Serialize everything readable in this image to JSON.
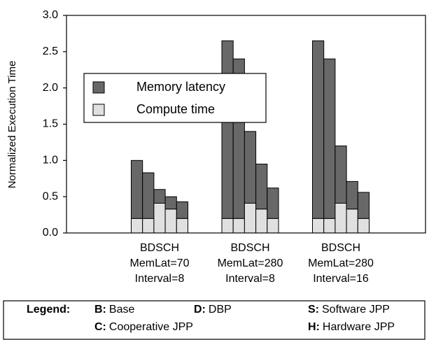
{
  "chart_data": {
    "type": "stacked_bar",
    "y_label": "Normalized Execution Time",
    "categories": [
      [
        "BDSCH",
        "MemLat=70",
        "Interval=8"
      ],
      [
        "BDSCH",
        "MemLat=280",
        "Interval=8"
      ],
      [
        "BDSCH",
        "MemLat=280",
        "Interval=16"
      ]
    ],
    "series": [
      {
        "name": "Compute time",
        "color": "#e0e0e0",
        "values": [
          [
            0.2,
            0.2,
            0.41,
            0.33,
            0.2
          ],
          [
            0.2,
            0.2,
            0.41,
            0.33,
            0.2
          ],
          [
            0.2,
            0.2,
            0.41,
            0.33,
            0.2
          ]
        ]
      },
      {
        "name": "Memory latency",
        "color": "#686868",
        "values": [
          [
            0.8,
            0.63,
            0.19,
            0.17,
            0.23
          ],
          [
            2.45,
            2.2,
            0.99,
            0.62,
            0.42
          ],
          [
            2.45,
            2.2,
            0.79,
            0.38,
            0.36
          ]
        ]
      }
    ],
    "ylim": [
      0,
      3
    ],
    "yticks": [
      {
        "value": 0,
        "label": "0.0"
      },
      0.5,
      {
        "value": 1,
        "label": "1.0"
      },
      1.5,
      {
        "value": 2,
        "label": "2.0"
      },
      2.5,
      {
        "value": 3,
        "label": "3.0"
      }
    ],
    "grid": false,
    "legend_title": "Legend:",
    "bar_key": [
      {
        "key": "B:",
        "text": "Base"
      },
      {
        "key": "D:",
        "text": "DBP"
      },
      {
        "key": "S:",
        "text": "Software JPP"
      },
      {
        "key": "C:",
        "text": "Cooperative JPP"
      },
      {
        "key": "H:",
        "text": "Hardware JPP"
      }
    ]
  }
}
